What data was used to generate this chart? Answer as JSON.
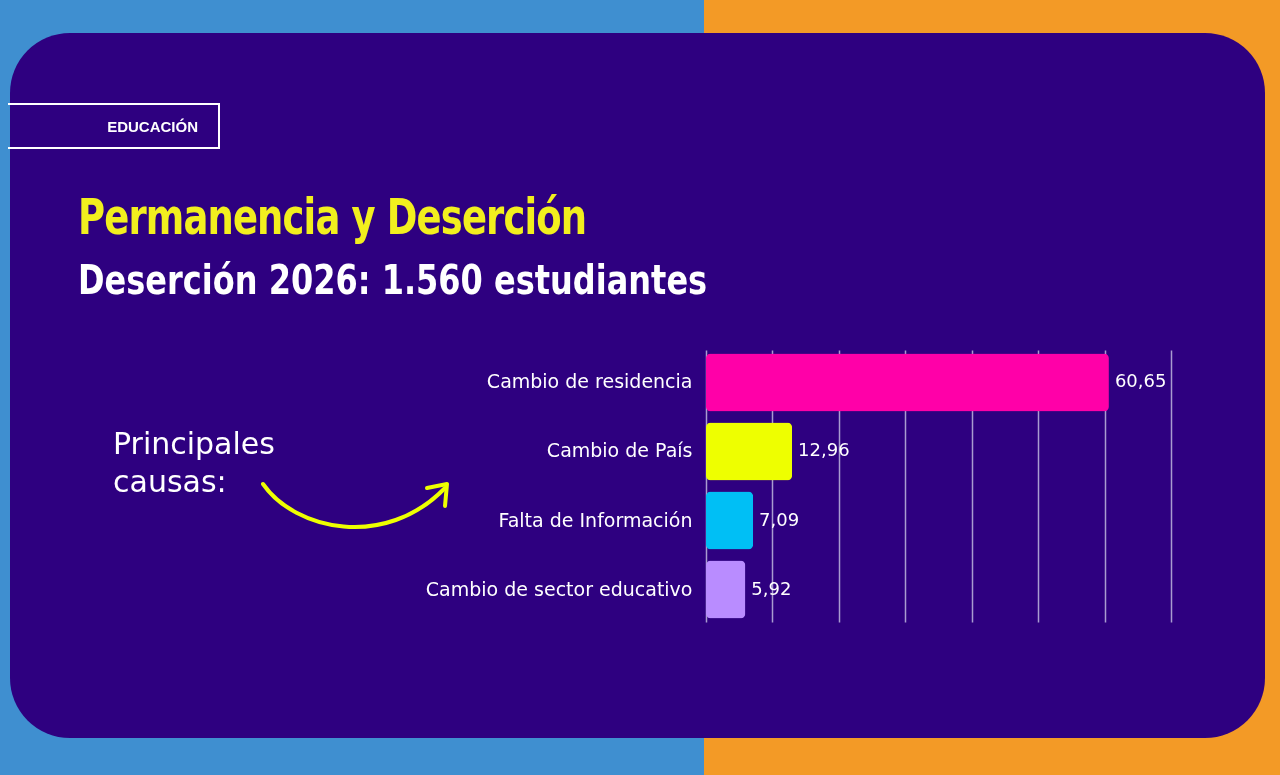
{
  "chart_data": {
    "type": "bar",
    "orientation": "horizontal",
    "title": "Permanencia y Deserción",
    "subtitle": "Deserción 2026: 1.560 estudiantes",
    "annotations": [
      "EDUCACIÓN",
      "Principales causas:"
    ],
    "categories": [
      "Cambio de residencia",
      "Cambio de País",
      "Falta de Información",
      "Cambio de sector educativo"
    ],
    "values": [
      60.65,
      12.96,
      7.09,
      5.92
    ],
    "colors": [
      "#ff00a8",
      "#eeff00",
      "#00bff5",
      "#b98cff"
    ],
    "value_labels": [
      "60,65",
      "12,96",
      "7,09",
      "5,92"
    ],
    "xlim": [
      0,
      70
    ],
    "xticks": [
      {
        "value": 0,
        "label": null
      },
      {
        "value": 10,
        "label": null
      },
      {
        "value": 20,
        "label": null
      },
      {
        "value": 30,
        "label": null
      },
      {
        "value": 40,
        "label": null
      },
      {
        "value": 50,
        "label": null
      },
      {
        "value": 60,
        "label": null
      },
      {
        "value": 70,
        "label": null
      }
    ],
    "grid": "x",
    "tick_labels": "y"
  }
}
